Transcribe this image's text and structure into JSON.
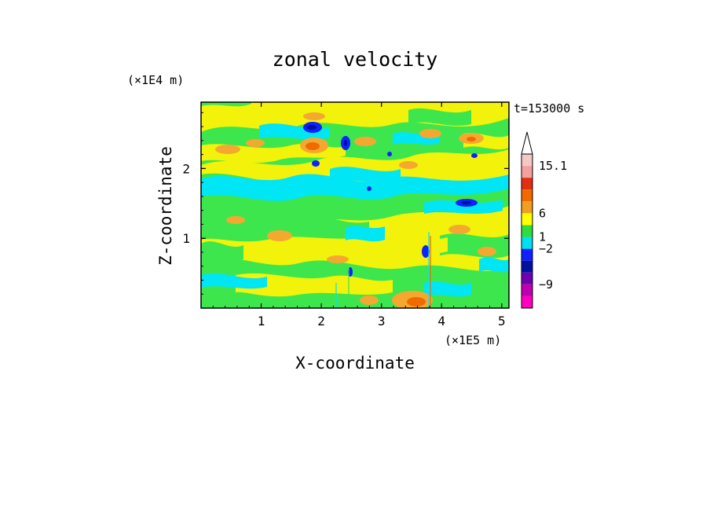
{
  "chart_data": {
    "type": "heatmap",
    "title": "zonal velocity",
    "xlabel": "X-coordinate",
    "ylabel": "Z-coordinate",
    "x_unit": "(×1E5 m)",
    "y_unit": "(×1E4 m)",
    "time_label": "t=153000 s",
    "xlim": [
      0,
      5.12
    ],
    "ylim": [
      0,
      2.95
    ],
    "x_ticks": [
      "1",
      "2",
      "3",
      "4",
      "5"
    ],
    "x_tick_values": [
      1,
      2,
      3,
      4,
      5
    ],
    "y_ticks": [
      "1",
      "2"
    ],
    "y_tick_values": [
      1,
      2
    ],
    "colorbar": {
      "labels": [
        "15.1",
        "6",
        "1",
        "-2",
        "-9"
      ],
      "levels": [
        15.1,
        6,
        1,
        -2,
        -9
      ],
      "colors": [
        "#f5c8c8",
        "#f5a0a0",
        "#e03010",
        "#f06a00",
        "#f0a020",
        "#ffff00",
        "#30dd40",
        "#00e0f0",
        "#1020ff",
        "#0010a0",
        "#7000b0",
        "#c000b0",
        "#ff00c0"
      ]
    },
    "field_colors": {
      "background": "#f2f20a",
      "green": "#3ee64e",
      "cyan": "#00e6f5",
      "orange": "#f5a830",
      "red_orange": "#f06a00",
      "blue": "#1020ff",
      "navy": "#0010a0"
    }
  }
}
